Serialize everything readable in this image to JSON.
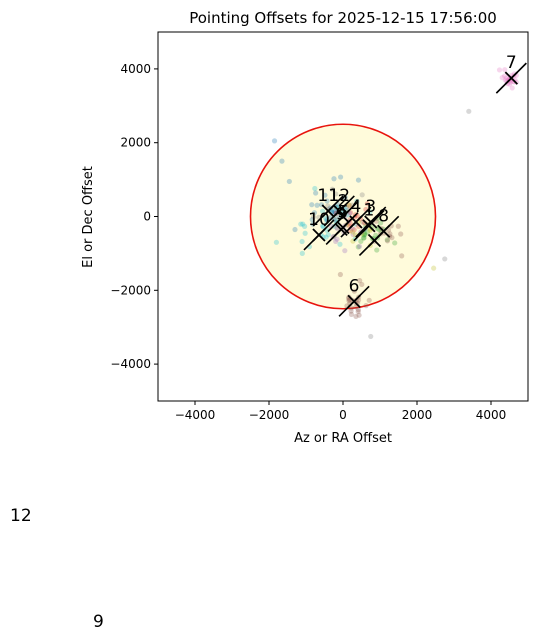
{
  "chart_data": {
    "type": "scatter",
    "title": "Pointing Offsets for 2025-12-15 17:56:00",
    "xlabel": "Az or RA Offset",
    "ylabel": "El or Dec Offset",
    "xlim": [
      -5000,
      5000
    ],
    "ylim": [
      -5000,
      5000
    ],
    "xticks": [
      -4000,
      -2000,
      0,
      2000,
      4000
    ],
    "yticks": [
      -4000,
      -2000,
      0,
      2000,
      4000
    ],
    "xtick_labels": [
      "−4000",
      "−2000",
      "0",
      "2000",
      "4000"
    ],
    "ytick_labels": [
      "−4000",
      "−2000",
      "0",
      "2000",
      "4000"
    ],
    "grid": false,
    "tolerance_circle": {
      "cx": 0,
      "cy": 0,
      "r": 2500,
      "fill": "#fffbdb",
      "stroke": "#e8140e"
    },
    "markers": [
      {
        "label": "1",
        "x": 700,
        "y": -250,
        "color": "#1f77b4"
      },
      {
        "label": "2",
        "x": 0,
        "y": 0,
        "color": "#ff7f0e"
      },
      {
        "label": "3",
        "x": 750,
        "y": -150,
        "color": "#2ca02c"
      },
      {
        "label": "4",
        "x": 350,
        "y": -150,
        "color": "#d62728"
      },
      {
        "label": "5",
        "x": 0,
        "y": -300,
        "color": "#9467bd"
      },
      {
        "label": "6",
        "x": 300,
        "y": -2300,
        "color": "#8c564b"
      },
      {
        "label": "7",
        "x": 4550,
        "y": 3750,
        "color": "#e377c2"
      },
      {
        "label": "8",
        "x": 1100,
        "y": -400,
        "color": "#7f7f7f"
      },
      {
        "label": "9",
        "x": -50,
        "y": -350,
        "color": "#bcbd22"
      },
      {
        "label": "10",
        "x": -650,
        "y": -500,
        "color": "#17becf"
      },
      {
        "label": "11",
        "x": -400,
        "y": 150,
        "color": "#1f77b4"
      },
      {
        "label": "12",
        "x": -100,
        "y": 150,
        "color": "#ff7f0e"
      },
      {
        "label": "",
        "x": 850,
        "y": -650,
        "color": "#2ca02c"
      }
    ],
    "points": [
      {
        "x": 4550,
        "y": 3750,
        "color": "#e377c2",
        "n": 26,
        "sx": 170,
        "sy": 130
      },
      {
        "x": 300,
        "y": -2300,
        "color": "#8c564b",
        "n": 26,
        "sx": 180,
        "sy": 250
      },
      {
        "x": -500,
        "y": -300,
        "color": "#17becf",
        "n": 30,
        "sx": 500,
        "sy": 320
      },
      {
        "x": -450,
        "y": 250,
        "color": "#1f77b4",
        "n": 30,
        "sx": 450,
        "sy": 400
      },
      {
        "x": 850,
        "y": -500,
        "color": "#2ca02c",
        "n": 24,
        "sx": 300,
        "sy": 250
      },
      {
        "x": 400,
        "y": 0,
        "color": "#d62728",
        "n": 16,
        "sx": 260,
        "sy": 230
      },
      {
        "x": 100,
        "y": -450,
        "color": "#9467bd",
        "n": 16,
        "sx": 280,
        "sy": 300
      },
      {
        "x": 1100,
        "y": -450,
        "color": "#8c564b",
        "n": 16,
        "sx": 280,
        "sy": 260
      },
      {
        "x": 0,
        "y": 200,
        "color": "#7f7f7f",
        "n": 14,
        "sx": 350,
        "sy": 300
      },
      {
        "x": 300,
        "y": -300,
        "color": "#bcbd22",
        "n": 10,
        "sx": 250,
        "sy": 250
      }
    ],
    "outliers": [
      {
        "x": 3400,
        "y": 2850,
        "color": "#7f7f7f"
      },
      {
        "x": -1850,
        "y": 2050,
        "color": "#1f77b4"
      },
      {
        "x": -1650,
        "y": 1500,
        "color": "#1f77b4"
      },
      {
        "x": -1450,
        "y": 950,
        "color": "#1f77b4"
      },
      {
        "x": 2750,
        "y": -1150,
        "color": "#7f7f7f"
      },
      {
        "x": 2450,
        "y": -1400,
        "color": "#bcbd22"
      },
      {
        "x": 750,
        "y": -3250,
        "color": "#7f7f7f"
      },
      {
        "x": -1800,
        "y": -700,
        "color": "#17becf"
      },
      {
        "x": -1100,
        "y": -1000,
        "color": "#17becf"
      }
    ]
  },
  "stray_labels": [
    "12",
    "9"
  ]
}
